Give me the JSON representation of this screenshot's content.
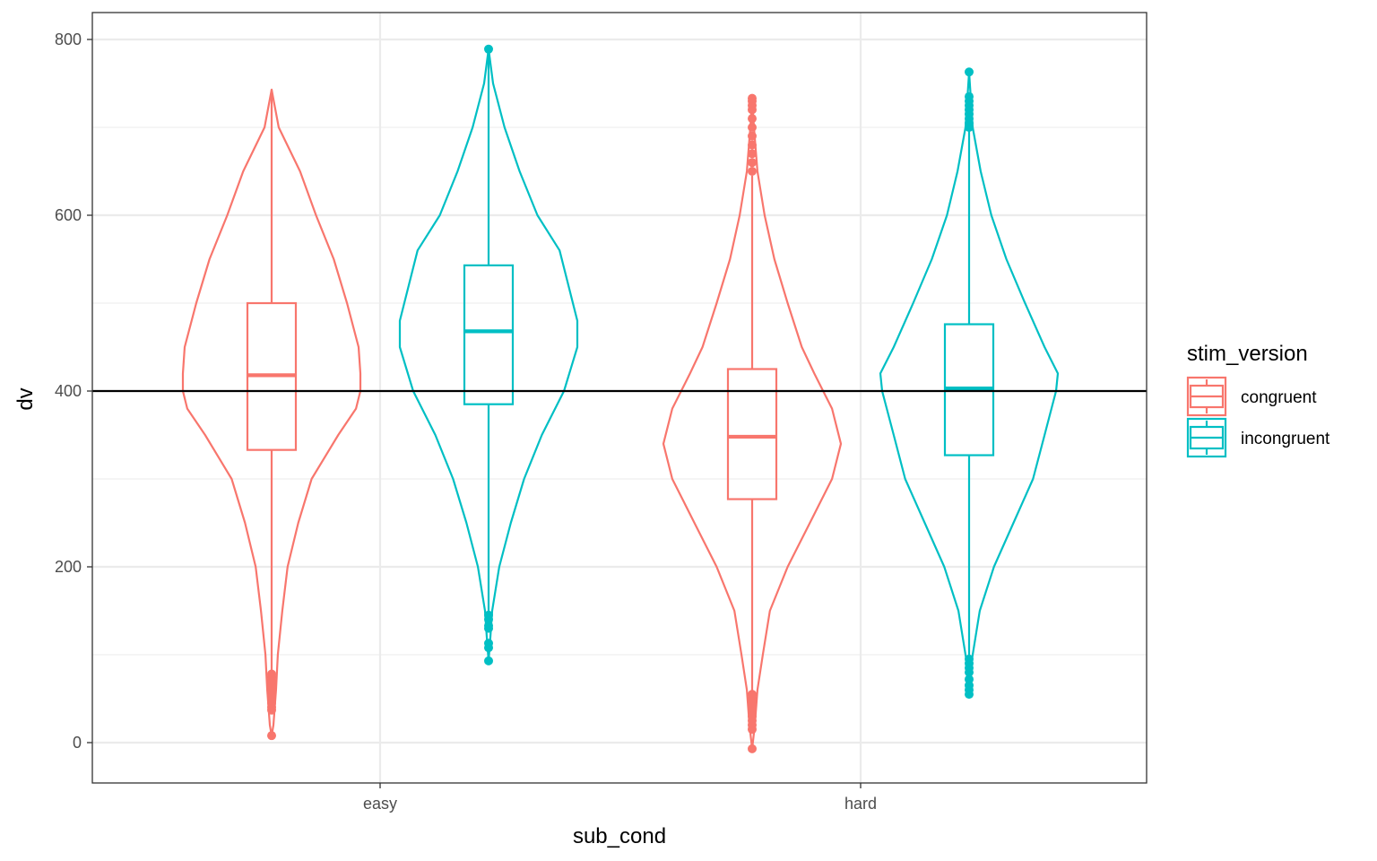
{
  "chart_data": {
    "type": "violin",
    "xlabel": "sub_cond",
    "ylabel": "dv",
    "categories": [
      "easy",
      "hard"
    ],
    "ylim": [
      -45,
      830
    ],
    "yticks": [
      0,
      200,
      400,
      600,
      800
    ],
    "grid": true,
    "legend": {
      "title": "stim_version",
      "position": "right",
      "entries": [
        "congruent",
        "incongruent"
      ]
    },
    "reference_line": {
      "y": 400,
      "color": "#000000"
    },
    "series": [
      {
        "name": "congruent",
        "color": "#F8766D",
        "groups": [
          {
            "category": "easy",
            "box": {
              "q1": 333,
              "median": 418,
              "q3": 500,
              "whisker_low": 80,
              "whisker_high": 743
            },
            "outliers": [
              8,
              37,
              40,
              45,
              50,
              55,
              60,
              65,
              70,
              75,
              78
            ],
            "violin": [
              [
                8,
                0
              ],
              [
                20,
                0.02
              ],
              [
                60,
                0.05
              ],
              [
                100,
                0.07
              ],
              [
                150,
                0.12
              ],
              [
                200,
                0.18
              ],
              [
                250,
                0.3
              ],
              [
                300,
                0.45
              ],
              [
                350,
                0.75
              ],
              [
                380,
                0.95
              ],
              [
                400,
                1.0
              ],
              [
                420,
                1.0
              ],
              [
                450,
                0.98
              ],
              [
                500,
                0.85
              ],
              [
                550,
                0.7
              ],
              [
                600,
                0.5
              ],
              [
                650,
                0.32
              ],
              [
                700,
                0.08
              ],
              [
                743,
                0
              ]
            ]
          },
          {
            "category": "hard",
            "box": {
              "q1": 277,
              "median": 348,
              "q3": 425,
              "whisker_low": 57,
              "whisker_high": 645
            },
            "outliers": [
              -7,
              15,
              20,
              25,
              30,
              35,
              40,
              45,
              50,
              55,
              650,
              660,
              670,
              680,
              690,
              700,
              710,
              720,
              725,
              730,
              733
            ],
            "violin": [
              [
                -7,
                0
              ],
              [
                20,
                0.03
              ],
              [
                60,
                0.06
              ],
              [
                100,
                0.12
              ],
              [
                150,
                0.2
              ],
              [
                200,
                0.4
              ],
              [
                250,
                0.65
              ],
              [
                300,
                0.9
              ],
              [
                340,
                1.0
              ],
              [
                380,
                0.9
              ],
              [
                420,
                0.7
              ],
              [
                450,
                0.56
              ],
              [
                500,
                0.4
              ],
              [
                550,
                0.25
              ],
              [
                600,
                0.14
              ],
              [
                650,
                0.06
              ],
              [
                700,
                0.02
              ],
              [
                733,
                0
              ]
            ]
          }
        ]
      },
      {
        "name": "incongruent",
        "color": "#00BFC4",
        "groups": [
          {
            "category": "easy",
            "box": {
              "q1": 385,
              "median": 468,
              "q3": 543,
              "whisker_low": 145,
              "whisker_high": 783
            },
            "outliers": [
              93,
              108,
              113,
              130,
              133,
              140,
              145,
              789
            ],
            "violin": [
              [
                93,
                0
              ],
              [
                120,
                0.02
              ],
              [
                150,
                0.04
              ],
              [
                200,
                0.12
              ],
              [
                250,
                0.25
              ],
              [
                300,
                0.4
              ],
              [
                350,
                0.6
              ],
              [
                400,
                0.85
              ],
              [
                450,
                1.0
              ],
              [
                480,
                1.0
              ],
              [
                520,
                0.9
              ],
              [
                560,
                0.8
              ],
              [
                600,
                0.55
              ],
              [
                650,
                0.35
              ],
              [
                700,
                0.18
              ],
              [
                750,
                0.05
              ],
              [
                789,
                0
              ]
            ]
          },
          {
            "category": "hard",
            "box": {
              "q1": 327,
              "median": 403,
              "q3": 476,
              "whisker_low": 98,
              "whisker_high": 700
            },
            "outliers": [
              55,
              60,
              65,
              72,
              80,
              85,
              90,
              95,
              700,
              705,
              710,
              715,
              720,
              725,
              730,
              735,
              763
            ],
            "violin": [
              [
                55,
                0
              ],
              [
                80,
                0.01
              ],
              [
                100,
                0.04
              ],
              [
                150,
                0.12
              ],
              [
                200,
                0.28
              ],
              [
                250,
                0.5
              ],
              [
                300,
                0.72
              ],
              [
                350,
                0.85
              ],
              [
                400,
                0.98
              ],
              [
                420,
                1.0
              ],
              [
                450,
                0.85
              ],
              [
                500,
                0.63
              ],
              [
                550,
                0.42
              ],
              [
                600,
                0.25
              ],
              [
                650,
                0.13
              ],
              [
                700,
                0.04
              ],
              [
                763,
                0
              ]
            ]
          }
        ]
      }
    ]
  }
}
